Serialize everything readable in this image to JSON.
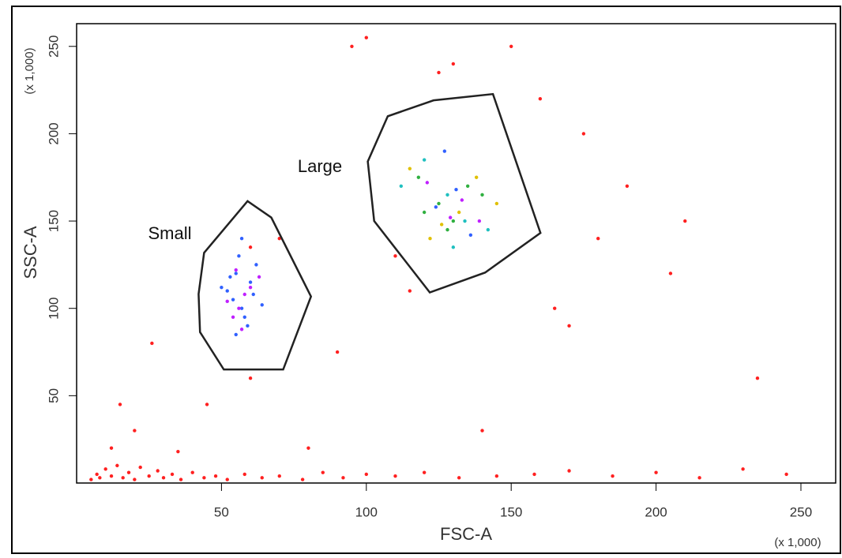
{
  "chart_data": {
    "type": "scatter",
    "xlabel": "FSC-A",
    "ylabel": "SSC-A",
    "x_scale_note": "(x 1,000)",
    "y_scale_note": "(x 1,000)",
    "xlim": [
      0,
      262
    ],
    "ylim": [
      0,
      263
    ],
    "xticks": [
      50,
      100,
      150,
      200,
      250
    ],
    "yticks": [
      50,
      100,
      150,
      200,
      250
    ],
    "series": [
      {
        "color": "#ff2020",
        "x": [
          5,
          7,
          8,
          10,
          12,
          14,
          16,
          18,
          20,
          22,
          25,
          28,
          30,
          33,
          36,
          40,
          44,
          48,
          52,
          58,
          64,
          70,
          78,
          85,
          92,
          100,
          110,
          120,
          132,
          145,
          158,
          170,
          185,
          200,
          215,
          230,
          245,
          12,
          20,
          35,
          26,
          15,
          60,
          90,
          70,
          110,
          130,
          150,
          175,
          190,
          210,
          235,
          160,
          140,
          100,
          80,
          170,
          180,
          205,
          115,
          125,
          95,
          165,
          60,
          45
        ],
        "values": [
          2,
          5,
          3,
          8,
          4,
          10,
          3,
          6,
          2,
          9,
          4,
          7,
          3,
          5,
          2,
          6,
          3,
          4,
          2,
          5,
          3,
          4,
          2,
          6,
          3,
          5,
          4,
          6,
          3,
          4,
          5,
          7,
          4,
          6,
          3,
          8,
          5,
          20,
          30,
          18,
          80,
          45,
          60,
          75,
          140,
          130,
          240,
          250,
          200,
          170,
          150,
          60,
          220,
          30,
          255,
          20,
          90,
          140,
          120,
          110,
          235,
          250,
          100,
          135,
          45
        ]
      },
      {
        "color": "#3060ff",
        "x": [
          52,
          55,
          57,
          60,
          58,
          54,
          62,
          50,
          56,
          59,
          53,
          61,
          57,
          55,
          64,
          124,
          131,
          136,
          127
        ],
        "values": [
          110,
          120,
          100,
          115,
          95,
          105,
          125,
          112,
          130,
          90,
          118,
          108,
          140,
          85,
          102,
          158,
          168,
          142,
          190
        ]
      },
      {
        "color": "#c020ff",
        "x": [
          56,
          58,
          54,
          60,
          57,
          52,
          63,
          55,
          129,
          133,
          121,
          139
        ],
        "values": [
          100,
          108,
          95,
          112,
          88,
          104,
          118,
          122,
          152,
          162,
          172,
          150
        ]
      },
      {
        "color": "#30b040",
        "x": [
          125,
          130,
          135,
          120,
          128,
          140,
          118
        ],
        "values": [
          160,
          150,
          170,
          155,
          145,
          165,
          175
        ]
      },
      {
        "color": "#e0c000",
        "x": [
          132,
          138,
          126,
          145,
          115,
          122
        ],
        "values": [
          155,
          175,
          148,
          160,
          180,
          140
        ]
      },
      {
        "color": "#20c0c0",
        "x": [
          128,
          134,
          120,
          142,
          112,
          130
        ],
        "values": [
          165,
          150,
          185,
          145,
          170,
          135
        ]
      }
    ],
    "gates": [
      {
        "label": "Small",
        "x": [
          59,
          67.2,
          80.9,
          71.3,
          50.8,
          42.6,
          42.1,
          44
        ],
        "y": [
          161.4,
          152,
          106.8,
          65,
          65,
          86.4,
          108.2,
          131.8
        ]
      },
      {
        "label": "Large",
        "x": [
          123.2,
          143.7,
          160.1,
          141,
          121.9,
          102.7,
          100.5,
          107.4
        ],
        "y": [
          219.1,
          222.7,
          143.2,
          120.5,
          109.1,
          150,
          184.1,
          210
        ]
      }
    ]
  }
}
